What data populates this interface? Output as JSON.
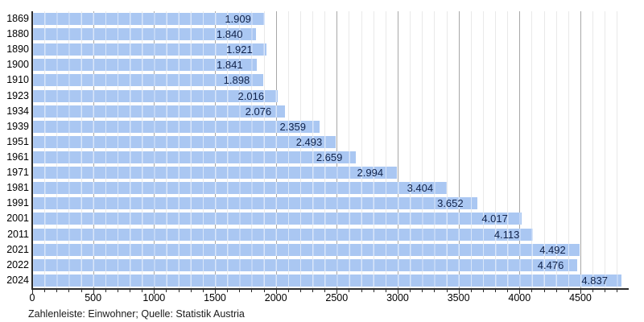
{
  "chart_data": {
    "type": "bar",
    "orientation": "horizontal",
    "title": "",
    "xlabel": "",
    "ylabel": "",
    "categories": [
      "1869",
      "1880",
      "1890",
      "1900",
      "1910",
      "1923",
      "1934",
      "1939",
      "1951",
      "1961",
      "1971",
      "1981",
      "1991",
      "2001",
      "2011",
      "2021",
      "2022",
      "2024"
    ],
    "values": [
      1909,
      1840,
      1921,
      1841,
      1898,
      2016,
      2076,
      2359,
      2493,
      2659,
      2994,
      3404,
      3652,
      4017,
      4113,
      4492,
      4476,
      4837
    ],
    "value_labels": [
      "1.909",
      "1.840",
      "1.921",
      "1.841",
      "1.898",
      "2.016",
      "2.076",
      "2.359",
      "2.493",
      "2.659",
      "2.994",
      "3.404",
      "3.652",
      "4.017",
      "4.113",
      "4.492",
      "4.476",
      "4.837"
    ],
    "x_ticks": [
      0,
      500,
      1000,
      1500,
      2000,
      2500,
      3000,
      3500,
      4000,
      4500
    ],
    "minor_tick_step": 100,
    "minor_tick_max": 4800,
    "axis_max": 4890,
    "grid": true,
    "legend": "none",
    "caption": "Zahlenleiste: Einwohner; Quelle: Statistik Austria",
    "colors": {
      "bar_fill": "#aac7f2",
      "value_text": "#10224a",
      "axis": "#2b2b2b",
      "major_grid": "#a8a8a8",
      "minor_grid": "#e9e9e9"
    }
  }
}
